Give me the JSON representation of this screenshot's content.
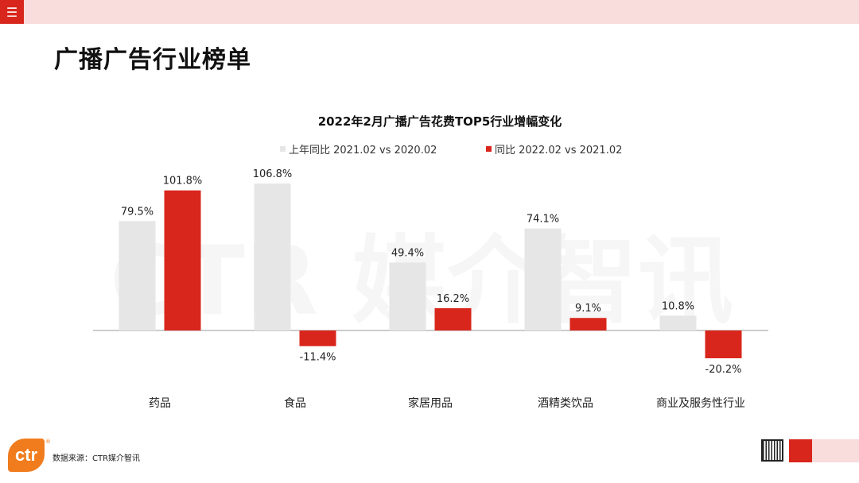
{
  "page": {
    "title": "广播广告行业榜单",
    "source": "数据来源：CTR媒介智讯",
    "logo_text": "ctr",
    "logo_mark": "®",
    "watermark": "CTR 媒介智讯",
    "menu_icon": "hamburger-icon"
  },
  "colors": {
    "accent": "#d9261c",
    "top_bar": "#f9dcdc",
    "series_prev": "#e6e6e6",
    "series_curr": "#d9261c",
    "logo": "#f07c1e"
  },
  "chart_data": {
    "type": "bar",
    "title": "2022年2月广播广告花费TOP5行业增幅变化",
    "categories": [
      "药品",
      "食品",
      "家居用品",
      "酒精类饮品",
      "商业及服务性行业"
    ],
    "series": [
      {
        "name": "上年同比 2021.02 vs 2020.02",
        "values": [
          79.5,
          106.8,
          49.4,
          74.1,
          10.8
        ],
        "labels": [
          "79.5%",
          "106.8%",
          "49.4%",
          "74.1%",
          "10.8%"
        ]
      },
      {
        "name": "同比 2022.02 vs 2021.02",
        "values": [
          101.8,
          -11.4,
          16.2,
          9.1,
          -20.2
        ],
        "labels": [
          "101.8%",
          "-11.4%",
          "16.2%",
          "9.1%",
          "-20.2%"
        ]
      }
    ],
    "legend_position": "top",
    "grid": false,
    "unit": "%"
  }
}
